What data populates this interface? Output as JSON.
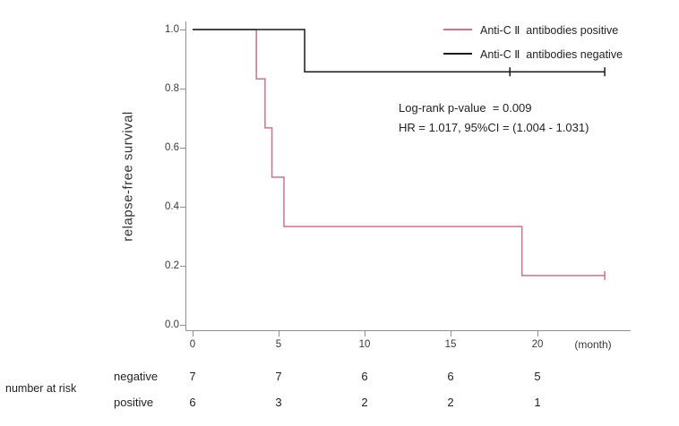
{
  "chart_data": {
    "type": "line",
    "subtype": "kaplan-meier-step",
    "title": "",
    "ylabel": "relapse-free survival",
    "xlabel": "(month)",
    "ylim": [
      0.0,
      1.0
    ],
    "xlim": [
      0,
      24.5
    ],
    "grid": false,
    "legend_position": "top-right",
    "yticks": [
      "1.0",
      "0.8",
      "0.6",
      "0.4",
      "0.2",
      "0.0"
    ],
    "xticks": [
      "0",
      "5",
      "10",
      "15",
      "20"
    ],
    "annotations": {
      "logrank": "Log-rank p-value  = 0.009",
      "hr": "HR = 1.017, 95%CI = (1.004 - 1.031)"
    },
    "series": [
      {
        "name": "Anti-C Ⅱ  antibodies positive",
        "color": "#d4708a",
        "steps": [
          [
            0,
            1.0
          ],
          [
            3.7,
            1.0
          ],
          [
            3.7,
            0.833
          ],
          [
            4.2,
            0.833
          ],
          [
            4.2,
            0.667
          ],
          [
            4.6,
            0.667
          ],
          [
            4.6,
            0.5
          ],
          [
            5.3,
            0.5
          ],
          [
            5.3,
            0.333
          ],
          [
            19.1,
            0.333
          ],
          [
            19.1,
            0.167
          ],
          [
            23.9,
            0.167
          ]
        ],
        "censors": [
          [
            23.9,
            0.167
          ]
        ]
      },
      {
        "name": "Anti-C Ⅱ  antibodies negative",
        "color": "#1a1a1a",
        "steps": [
          [
            0,
            1.0
          ],
          [
            6.5,
            1.0
          ],
          [
            6.5,
            0.857
          ],
          [
            23.9,
            0.857
          ]
        ],
        "censors": [
          [
            18.4,
            0.857
          ],
          [
            23.9,
            0.857
          ]
        ]
      }
    ],
    "risk_table": {
      "label": "number at risk",
      "rows": [
        {
          "name": "negative",
          "values": [
            "7",
            "7",
            "6",
            "6",
            "5"
          ]
        },
        {
          "name": "positive",
          "values": [
            "6",
            "3",
            "2",
            "2",
            "1"
          ]
        }
      ]
    }
  }
}
